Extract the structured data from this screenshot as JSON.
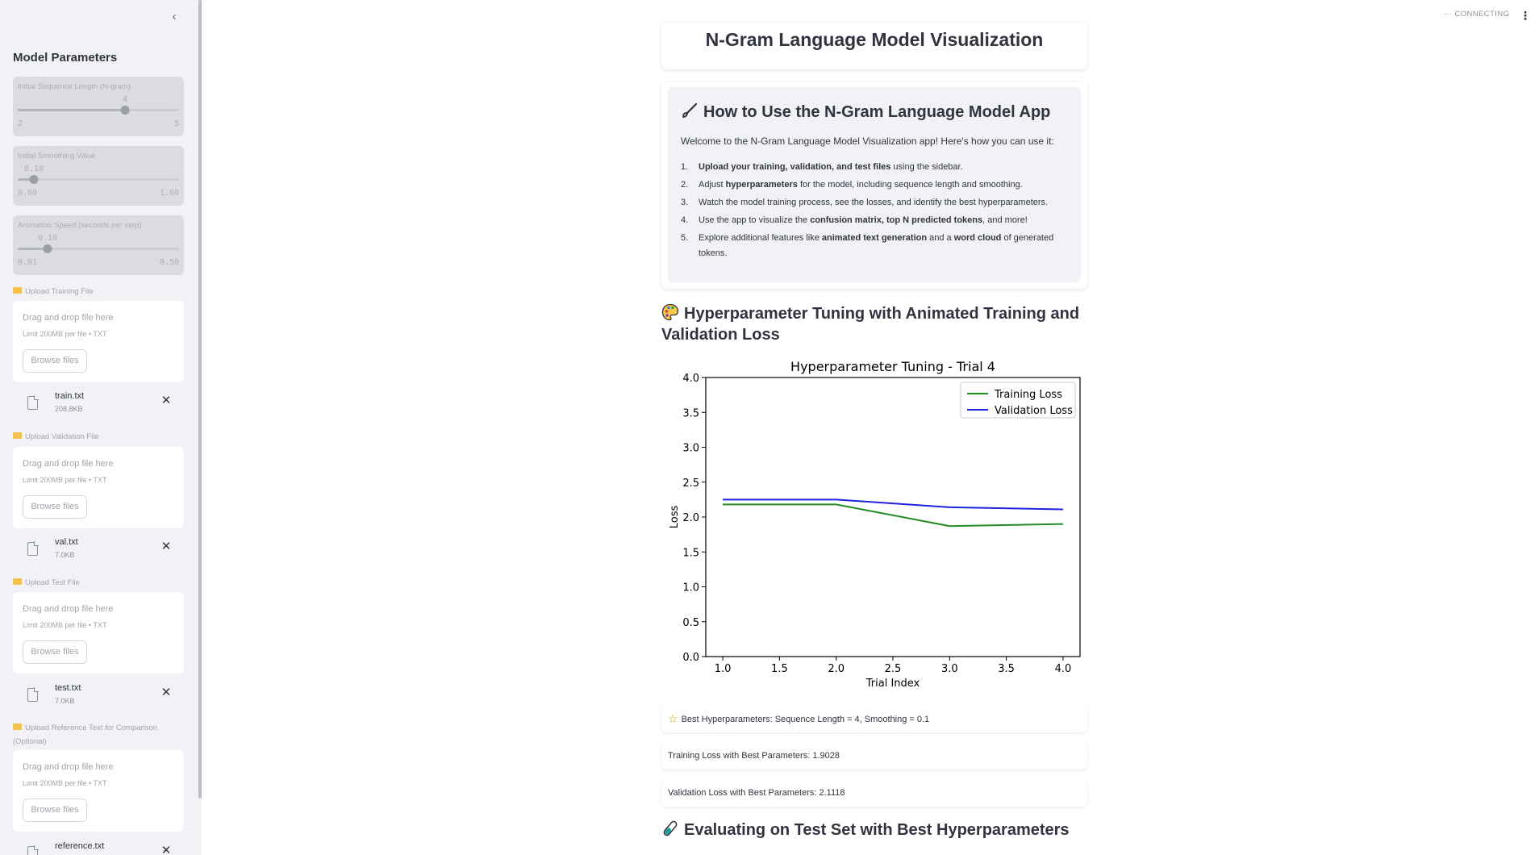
{
  "sidebar": {
    "collapse_icon": "‹",
    "title": "Model Parameters",
    "params": [
      {
        "label": "Initial Sequence Length (N-gram)",
        "value": "4",
        "min": "2",
        "max": "5",
        "level": 0.6667
      },
      {
        "label": "Initial Smoothing Value",
        "value": "0.10",
        "min": "0.00",
        "max": "1.00",
        "level": 0.1
      },
      {
        "label": "Animation Speed (seconds per step)",
        "value": "0.10",
        "min": "0.01",
        "max": "0.50",
        "level": 0.1837
      }
    ],
    "uploads": [
      {
        "label": "Upload Training File",
        "drop_text": "Drag and drop file here",
        "limit": "Limit 200MB per file • TXT",
        "browse": "Browse files",
        "file_name": "train.txt",
        "file_size": "208.8KB"
      },
      {
        "label": "Upload Validation File",
        "drop_text": "Drag and drop file here",
        "limit": "Limit 200MB per file • TXT",
        "browse": "Browse files",
        "file_name": "val.txt",
        "file_size": "7.0KB"
      },
      {
        "label": "Upload Test File",
        "drop_text": "Drag and drop file here",
        "limit": "Limit 200MB per file • TXT",
        "browse": "Browse files",
        "file_name": "test.txt",
        "file_size": "7.0KB"
      },
      {
        "label": "Upload Reference Text for Comparison (Optional)",
        "drop_text": "Drag and drop file here",
        "limit": "Limit 200MB per file • TXT",
        "browse": "Browse files",
        "file_name": "reference.txt",
        "file_size": ""
      }
    ],
    "remove_icon": "✕"
  },
  "status": {
    "text": "CONNECTING",
    "dots": "···",
    "menu_icon": "⋮"
  },
  "main": {
    "title": "N-Gram Language Model Visualization",
    "howto": {
      "title": "How to Use the N-Gram Language Model App",
      "welcome": "Welcome to the N-Gram Language Model Visualization app! Here's how you can use it:",
      "steps": [
        {
          "num": "1.",
          "bold1": "Upload your training, validation, and test files",
          "text1": " using the sidebar.",
          "bold2": "",
          "text2": "",
          "bold3": "",
          "text3": ""
        },
        {
          "num": "2.",
          "bold1": "",
          "text1": "Adjust ",
          "bold2": "hyperparameters",
          "text2": " for the model, including sequence length and smoothing.",
          "bold3": "",
          "text3": ""
        },
        {
          "num": "3.",
          "bold1": "",
          "text1": "Watch the model training process, see the losses, and identify the best hyperparameters.",
          "bold2": "",
          "text2": "",
          "bold3": "",
          "text3": ""
        },
        {
          "num": "4.",
          "bold1": "",
          "text1": "Use the app to visualize the ",
          "bold2": "confusion matrix, top N predicted tokens",
          "text2": ", and more!",
          "bold3": "",
          "text3": ""
        },
        {
          "num": "5.",
          "bold1": "",
          "text1": "Explore additional features like ",
          "bold2": "animated text generation",
          "text2": " and a ",
          "bold3": "word cloud",
          "text3": " of generated tokens."
        }
      ]
    },
    "section_hyper": "Hyperparameter Tuning with Animated Training and Validation Loss",
    "best_params": "Best Hyperparameters: Sequence Length = 4, Smoothing = 0.1",
    "train_loss_text": "Training Loss with Best Parameters: 1.9028",
    "val_loss_text": "Validation Loss with Best Parameters: 2.1118",
    "section_eval": "Evaluating on Test Set with Best Hyperparameters",
    "icons": {
      "howto": "paintbrush-icon",
      "hyper": "palette-icon",
      "best": "star-icon",
      "eval": "test-tube-icon"
    }
  },
  "chart_data": {
    "type": "line",
    "title": "Hyperparameter Tuning - Trial 4",
    "xlabel": "Trial Index",
    "ylabel": "Loss",
    "xlim": [
      0.85,
      4.15
    ],
    "ylim": [
      0,
      4
    ],
    "xticks": [
      "1.0",
      "1.5",
      "2.0",
      "2.5",
      "3.0",
      "3.5",
      "4.0"
    ],
    "yticks": [
      "0.0",
      "0.5",
      "1.0",
      "1.5",
      "2.0",
      "2.5",
      "3.0",
      "3.5",
      "4.0"
    ],
    "x": [
      1,
      2,
      3,
      4
    ],
    "series": [
      {
        "name": "Training Loss",
        "color": "#228b22",
        "values": [
          2.18,
          2.18,
          1.87,
          1.9
        ]
      },
      {
        "name": "Validation Loss",
        "color": "#2020e0",
        "values": [
          2.25,
          2.25,
          2.14,
          2.11
        ]
      }
    ],
    "legend": "top-right",
    "grid": false
  }
}
